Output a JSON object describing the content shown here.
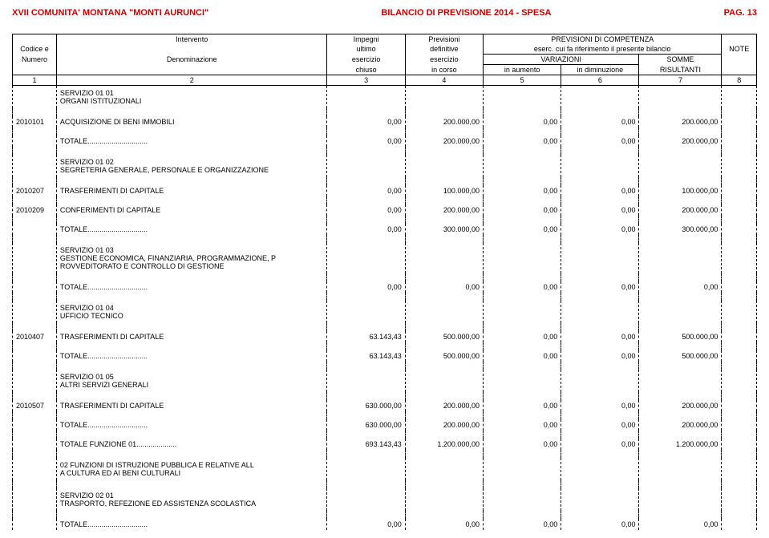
{
  "header": {
    "org": "XVII COMUNITA' MONTANA \"MONTI AURUNCI\"",
    "title": "BILANCIO DI PREVISIONE 2014 - SPESA",
    "page": "PAG. 13"
  },
  "columns": {
    "r1": {
      "c1": "",
      "c2": "Intervento",
      "c3": "Impegni",
      "c4": "Previsioni",
      "c5": "PREVISIONI DI COMPETENZA",
      "c8": ""
    },
    "r2": {
      "c1": "Codice e",
      "c2": "",
      "c3": "ultimo",
      "c4": "definitive",
      "c5": "eserc. cui fa riferimento il presente bilancio",
      "c8": "NOTE"
    },
    "r3": {
      "c1": "Numero",
      "c2": "Denominazione",
      "c3": "esercizio",
      "c4": "esercizio",
      "c5": "VARIAZIONI",
      "c7": "SOMME",
      "c8": ""
    },
    "r4": {
      "c1": "",
      "c2": "",
      "c3": "chiuso",
      "c4": "in corso",
      "c5": "in aumento",
      "c6": "in diminuzione",
      "c7": "RISULTANTI",
      "c8": ""
    },
    "nums": {
      "c1": "1",
      "c2": "2",
      "c3": "3",
      "c4": "4",
      "c5": "5",
      "c6": "6",
      "c7": "7",
      "c8": "8"
    }
  },
  "rows": [
    {
      "type": "section",
      "desc": "SERVIZIO      01  01\nORGANI ISTITUZIONALI"
    },
    {
      "type": "spacer"
    },
    {
      "type": "data",
      "code": "2010101",
      "desc": "ACQUISIZIONE DI BENI IMMOBILI",
      "c3": "0,00",
      "c4": "200.000,00",
      "c5": "0,00",
      "c6": "0,00",
      "c7": "200.000,00"
    },
    {
      "type": "spacer"
    },
    {
      "type": "data",
      "code": "",
      "desc": "TOTALE..............................",
      "c3": "0,00",
      "c4": "200.000,00",
      "c5": "0,00",
      "c6": "0,00",
      "c7": "200.000,00"
    },
    {
      "type": "spacer"
    },
    {
      "type": "section",
      "desc": "SERVIZIO      01  02\nSEGRETERIA GENERALE, PERSONALE E ORGANIZZAZIONE"
    },
    {
      "type": "spacer"
    },
    {
      "type": "data",
      "code": "2010207",
      "desc": "TRASFERIMENTI DI CAPITALE",
      "c3": "0,00",
      "c4": "100.000,00",
      "c5": "0,00",
      "c6": "0,00",
      "c7": "100.000,00"
    },
    {
      "type": "spacer"
    },
    {
      "type": "data",
      "code": "2010209",
      "desc": "CONFERIMENTI DI CAPITALE",
      "c3": "0,00",
      "c4": "200.000,00",
      "c5": "0,00",
      "c6": "0,00",
      "c7": "200.000,00"
    },
    {
      "type": "spacer"
    },
    {
      "type": "data",
      "code": "",
      "desc": "TOTALE..............................",
      "c3": "0,00",
      "c4": "300.000,00",
      "c5": "0,00",
      "c6": "0,00",
      "c7": "300.000,00"
    },
    {
      "type": "spacer"
    },
    {
      "type": "section",
      "desc": "SERVIZIO      01  03\nGESTIONE ECONOMICA, FINANZIARIA, PROGRAMMAZIONE, P\nROVVEDITORATO E CONTROLLO DI GESTIONE"
    },
    {
      "type": "spacer"
    },
    {
      "type": "data",
      "code": "",
      "desc": "TOTALE..............................",
      "c3": "0,00",
      "c4": "0,00",
      "c5": "0,00",
      "c6": "0,00",
      "c7": "0,00"
    },
    {
      "type": "spacer"
    },
    {
      "type": "section",
      "desc": "SERVIZIO      01  04\nUFFICIO TECNICO"
    },
    {
      "type": "spacer"
    },
    {
      "type": "data",
      "code": "2010407",
      "desc": "TRASFERIMENTI DI CAPITALE",
      "c3": "63.143,43",
      "c4": "500.000,00",
      "c5": "0,00",
      "c6": "0,00",
      "c7": "500.000,00"
    },
    {
      "type": "spacer"
    },
    {
      "type": "data",
      "code": "",
      "desc": "TOTALE..............................",
      "c3": "63.143,43",
      "c4": "500.000,00",
      "c5": "0,00",
      "c6": "0,00",
      "c7": "500.000,00"
    },
    {
      "type": "spacer"
    },
    {
      "type": "section",
      "desc": "SERVIZIO      01  05\nALTRI SERVIZI GENERALI"
    },
    {
      "type": "spacer"
    },
    {
      "type": "data",
      "code": "2010507",
      "desc": "TRASFERIMENTI DI CAPITALE",
      "c3": "630.000,00",
      "c4": "200.000,00",
      "c5": "0,00",
      "c6": "0,00",
      "c7": "200.000,00"
    },
    {
      "type": "spacer"
    },
    {
      "type": "data",
      "code": "",
      "desc": "TOTALE..............................",
      "c3": "630.000,00",
      "c4": "200.000,00",
      "c5": "0,00",
      "c6": "0,00",
      "c7": "200.000,00"
    },
    {
      "type": "spacer"
    },
    {
      "type": "data",
      "code": "",
      "desc": "TOTALE FUNZIONE  01....................",
      "c3": "693.143,43",
      "c4": "1.200.000,00",
      "c5": "0,00",
      "c6": "0,00",
      "c7": "1.200.000,00"
    },
    {
      "type": "spacer"
    },
    {
      "type": "section",
      "desc": "02    FUNZIONI DI ISTRUZIONE PUBBLICA E RELATIVE ALL\n       A CULTURA ED AI BENI CULTURALI"
    },
    {
      "type": "spacer"
    },
    {
      "type": "section",
      "desc": "SERVIZIO      02  01\nTRASPORTO, REFEZIONE ED ASSISTENZA SCOLASTICA"
    },
    {
      "type": "spacer"
    },
    {
      "type": "data",
      "code": "",
      "desc": "TOTALE..............................",
      "c3": "0,00",
      "c4": "0,00",
      "c5": "0,00",
      "c6": "0,00",
      "c7": "0,00"
    }
  ]
}
